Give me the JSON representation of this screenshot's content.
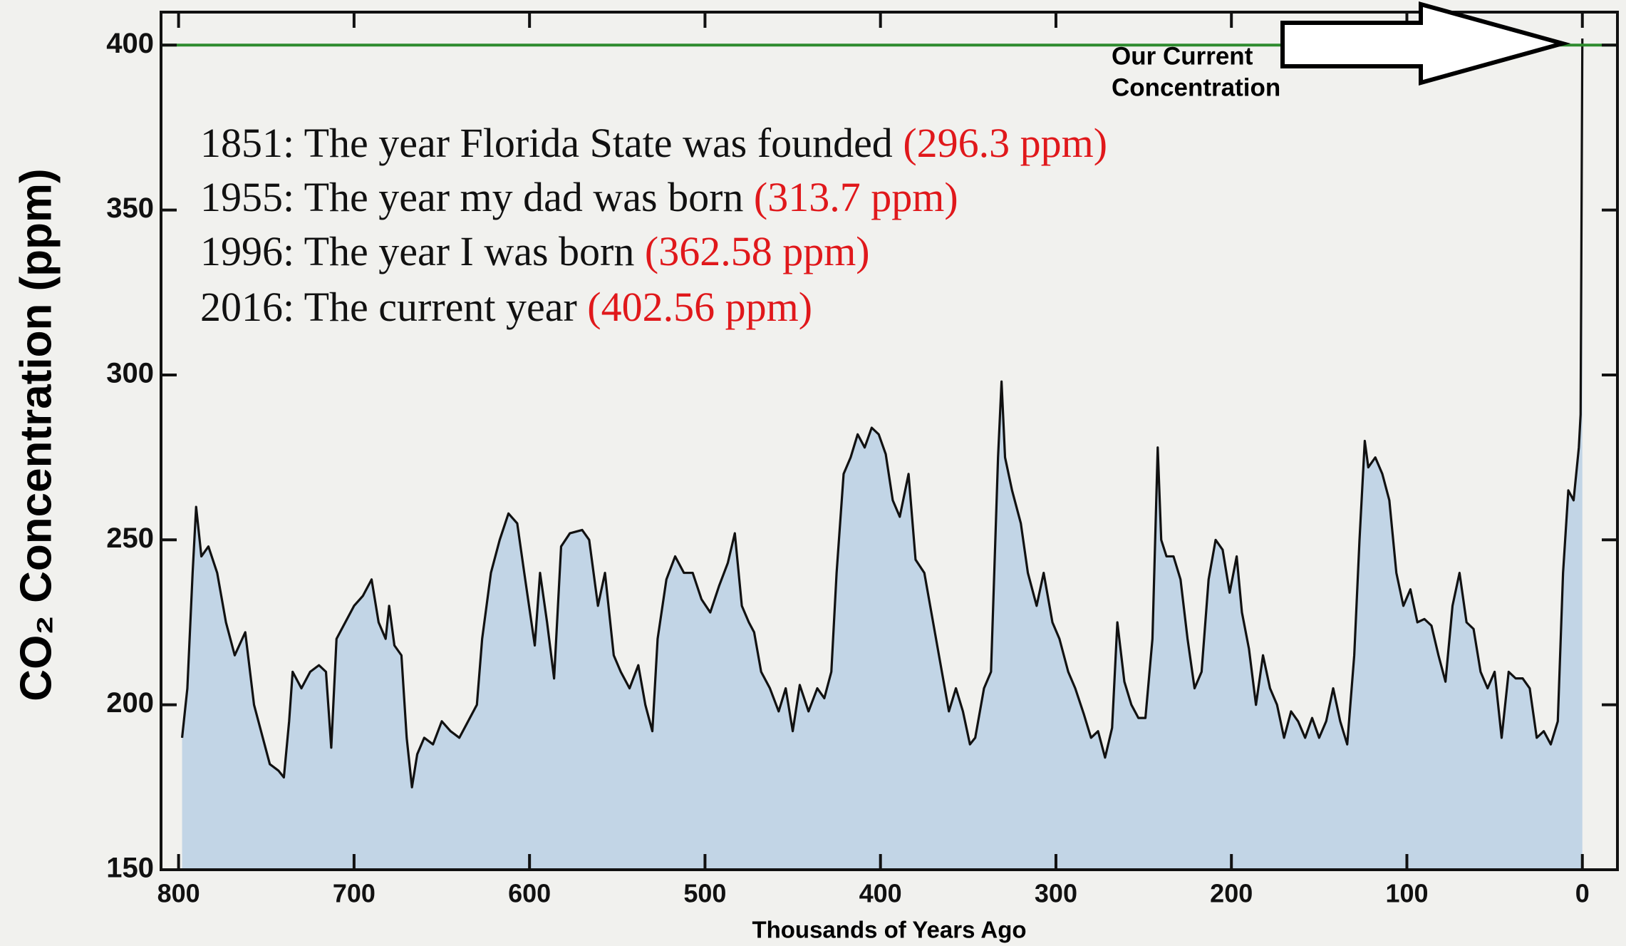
{
  "chart_data": {
    "type": "area",
    "ylabel": "CO₂ Concentration (ppm)",
    "xlabel": "Thousands of Years Ago",
    "xlim": [
      810,
      -20
    ],
    "ylim": [
      150,
      410
    ],
    "xticks": [
      800,
      700,
      600,
      500,
      400,
      300,
      200,
      100,
      0
    ],
    "yticks": [
      150,
      200,
      250,
      300,
      350,
      400
    ],
    "reference_line": {
      "value": 400,
      "color": "#2e8b2e"
    },
    "annotation": [
      "Our Current",
      "Concentration"
    ],
    "notes": [
      {
        "text": "1851: The year Florida State was founded",
        "value_label": "(296.3 ppm)"
      },
      {
        "text": "1955: The year my dad was born",
        "value_label": "(313.7 ppm)"
      },
      {
        "text": "1996: The year I was born",
        "value_label": "(362.58 ppm)"
      },
      {
        "text": "2016: The current year",
        "value_label": "(402.56 ppm)"
      }
    ],
    "series": [
      {
        "color": "#111111",
        "fill": "#c2d5e6",
        "x": [
          798,
          795,
          792,
          790,
          787,
          783,
          778,
          773,
          768,
          762,
          757,
          752,
          748,
          743,
          740,
          737,
          735,
          730,
          725,
          720,
          716,
          713,
          710,
          705,
          700,
          695,
          690,
          686,
          682,
          680,
          677,
          673,
          670,
          667,
          664,
          660,
          655,
          650,
          645,
          640,
          635,
          630,
          627,
          622,
          617,
          612,
          607,
          603,
          597,
          594,
          590,
          586,
          582,
          577,
          570,
          566,
          561,
          557,
          552,
          548,
          543,
          538,
          534,
          530,
          527,
          522,
          517,
          512,
          507,
          502,
          497,
          492,
          487,
          483,
          479,
          475,
          472,
          468,
          463,
          458,
          454,
          450,
          446,
          441,
          436,
          432,
          428,
          425,
          421,
          417,
          413,
          409,
          405,
          401,
          397,
          393,
          389,
          384,
          380,
          375,
          370,
          366,
          361,
          357,
          353,
          349,
          346,
          341,
          337,
          333,
          331,
          329,
          325,
          320,
          316,
          311,
          307,
          302,
          298,
          293,
          289,
          284,
          280,
          276,
          272,
          268,
          265,
          261,
          257,
          253,
          249,
          245,
          242,
          240,
          237,
          233,
          229,
          225,
          221,
          217,
          213,
          209,
          205,
          201,
          197,
          194,
          190,
          186,
          182,
          178,
          174,
          170,
          166,
          162,
          158,
          154,
          150,
          146,
          142,
          138,
          134,
          130,
          127,
          124,
          122,
          118,
          114,
          110,
          106,
          102,
          98,
          94,
          90,
          86,
          82,
          78,
          74,
          70,
          66,
          62,
          58,
          54,
          50,
          46,
          42,
          38,
          34,
          30,
          26,
          22,
          18,
          14,
          11,
          8,
          5,
          2,
          1,
          0
        ],
        "values": [
          190,
          205,
          240,
          260,
          245,
          248,
          240,
          225,
          215,
          222,
          200,
          190,
          182,
          180,
          178,
          195,
          210,
          205,
          210,
          212,
          210,
          187,
          220,
          225,
          230,
          233,
          238,
          225,
          220,
          230,
          218,
          215,
          190,
          175,
          185,
          190,
          188,
          195,
          192,
          190,
          195,
          200,
          220,
          240,
          250,
          258,
          255,
          240,
          218,
          240,
          225,
          208,
          248,
          252,
          253,
          250,
          230,
          240,
          215,
          210,
          205,
          212,
          200,
          192,
          220,
          238,
          245,
          240,
          240,
          232,
          228,
          236,
          243,
          252,
          230,
          225,
          222,
          210,
          205,
          198,
          205,
          192,
          206,
          198,
          205,
          202,
          210,
          240,
          270,
          275,
          282,
          278,
          284,
          282,
          276,
          262,
          257,
          270,
          244,
          240,
          225,
          213,
          198,
          205,
          198,
          188,
          190,
          205,
          210,
          275,
          298,
          275,
          265,
          255,
          240,
          230,
          240,
          225,
          220,
          210,
          205,
          197,
          190,
          192,
          184,
          193,
          225,
          207,
          200,
          196,
          196,
          220,
          278,
          250,
          245,
          245,
          238,
          220,
          205,
          210,
          238,
          250,
          247,
          234,
          245,
          228,
          217,
          200,
          215,
          205,
          200,
          190,
          198,
          195,
          190,
          196,
          190,
          195,
          205,
          195,
          188,
          215,
          250,
          280,
          272,
          275,
          270,
          262,
          240,
          230,
          235,
          225,
          226,
          224,
          215,
          207,
          230,
          240,
          225,
          223,
          210,
          205,
          210,
          190,
          210,
          208,
          208,
          205,
          190,
          192,
          188,
          195,
          240,
          265,
          262,
          278,
          288,
          402
        ]
      }
    ]
  }
}
